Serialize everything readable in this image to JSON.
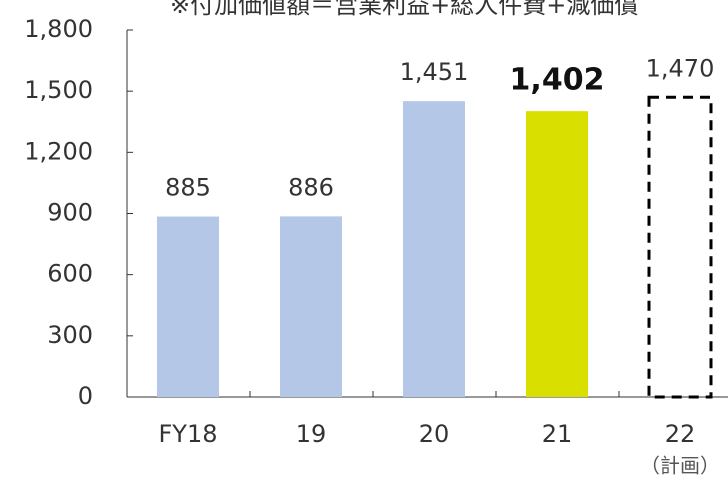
{
  "chart_data": {
    "type": "bar",
    "title": "※付加価値額＝営業利益+総人件費+減価償",
    "categories": [
      "FY18",
      "19",
      "20",
      "21",
      "22"
    ],
    "category_notes": [
      null,
      null,
      null,
      null,
      "（計画）"
    ],
    "values": [
      885,
      886,
      1451,
      1402,
      1470
    ],
    "value_labels": [
      "885",
      "886",
      "1,451",
      "1,402",
      "1,470"
    ],
    "colors": [
      "#b4c7e7",
      "#b4c7e7",
      "#b4c7e7",
      "#d9e000",
      "#000000"
    ],
    "dashed": [
      false,
      false,
      false,
      false,
      true
    ],
    "bold_labels": [
      false,
      false,
      false,
      true,
      false
    ],
    "ylim": [
      0,
      1800
    ],
    "yticks": [
      0,
      300,
      600,
      900,
      {
        "value": 1200,
        "label": "1,200"
      },
      {
        "value": 1500,
        "label": "1,500"
      },
      {
        "value": 1800,
        "label": "1,800"
      }
    ],
    "grid": false
  }
}
